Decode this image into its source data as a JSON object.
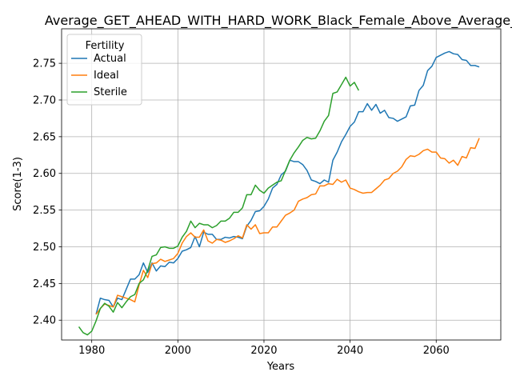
{
  "chart_data": {
    "type": "line",
    "title": "Average_GET_AHEAD_WITH_HARD_WORK_Black_Female_Above_Average_",
    "xlabel": "Years",
    "ylabel": "Score(1-3)",
    "xlim": [
      1973,
      2075
    ],
    "ylim": [
      2.373,
      2.797
    ],
    "x_ticks": [
      1980,
      2000,
      2020,
      2040,
      2060
    ],
    "y_ticks": [
      2.4,
      2.45,
      2.5,
      2.55,
      2.6,
      2.65,
      2.7,
      2.75
    ],
    "x_tick_labels": [
      "1980",
      "2000",
      "2020",
      "2040",
      "2060"
    ],
    "y_tick_labels": [
      "2.40",
      "2.45",
      "2.50",
      "2.55",
      "2.60",
      "2.65",
      "2.70",
      "2.75"
    ],
    "grid": true,
    "legend": {
      "title": "Fertility",
      "placement": "top-left"
    },
    "series": [
      {
        "name": "Actual",
        "color": "#1f77b4",
        "points": [
          [
            1981,
            2.408
          ],
          [
            1982,
            2.43
          ],
          [
            1983,
            2.428
          ],
          [
            1984,
            2.427
          ],
          [
            1985,
            2.418
          ],
          [
            1986,
            2.43
          ],
          [
            1987,
            2.428
          ],
          [
            1988,
            2.442
          ],
          [
            1989,
            2.456
          ],
          [
            1990,
            2.456
          ],
          [
            1991,
            2.462
          ],
          [
            1992,
            2.478
          ],
          [
            1993,
            2.465
          ],
          [
            1994,
            2.478
          ],
          [
            1995,
            2.467
          ],
          [
            1996,
            2.474
          ],
          [
            1997,
            2.473
          ],
          [
            1998,
            2.479
          ],
          [
            1999,
            2.478
          ],
          [
            2000,
            2.484
          ],
          [
            2001,
            2.494
          ],
          [
            2002,
            2.496
          ],
          [
            2003,
            2.499
          ],
          [
            2004,
            2.514
          ],
          [
            2005,
            2.5
          ],
          [
            2006,
            2.52
          ],
          [
            2007,
            2.517
          ],
          [
            2008,
            2.517
          ],
          [
            2009,
            2.51
          ],
          [
            2010,
            2.51
          ],
          [
            2011,
            2.513
          ],
          [
            2012,
            2.512
          ],
          [
            2013,
            2.514
          ],
          [
            2014,
            2.513
          ],
          [
            2015,
            2.511
          ],
          [
            2016,
            2.528
          ],
          [
            2017,
            2.536
          ],
          [
            2018,
            2.548
          ],
          [
            2019,
            2.549
          ],
          [
            2020,
            2.555
          ],
          [
            2021,
            2.565
          ],
          [
            2022,
            2.58
          ],
          [
            2023,
            2.585
          ],
          [
            2024,
            2.598
          ],
          [
            2025,
            2.603
          ],
          [
            2026,
            2.618
          ],
          [
            2027,
            2.616
          ],
          [
            2028,
            2.616
          ],
          [
            2029,
            2.612
          ],
          [
            2030,
            2.604
          ],
          [
            2031,
            2.591
          ],
          [
            2032,
            2.589
          ],
          [
            2033,
            2.586
          ],
          [
            2034,
            2.591
          ],
          [
            2035,
            2.588
          ],
          [
            2036,
            2.618
          ],
          [
            2037,
            2.629
          ],
          [
            2038,
            2.643
          ],
          [
            2039,
            2.653
          ],
          [
            2040,
            2.664
          ],
          [
            2041,
            2.67
          ],
          [
            2042,
            2.684
          ],
          [
            2043,
            2.684
          ],
          [
            2044,
            2.695
          ],
          [
            2045,
            2.686
          ],
          [
            2046,
            2.694
          ],
          [
            2047,
            2.682
          ],
          [
            2048,
            2.686
          ],
          [
            2049,
            2.676
          ],
          [
            2050,
            2.675
          ],
          [
            2051,
            2.671
          ],
          [
            2052,
            2.674
          ],
          [
            2053,
            2.677
          ],
          [
            2054,
            2.692
          ],
          [
            2055,
            2.693
          ],
          [
            2056,
            2.713
          ],
          [
            2057,
            2.72
          ],
          [
            2058,
            2.74
          ],
          [
            2059,
            2.746
          ],
          [
            2060,
            2.758
          ],
          [
            2061,
            2.761
          ],
          [
            2062,
            2.764
          ],
          [
            2063,
            2.766
          ],
          [
            2064,
            2.763
          ],
          [
            2065,
            2.762
          ],
          [
            2066,
            2.755
          ],
          [
            2067,
            2.754
          ],
          [
            2068,
            2.747
          ],
          [
            2069,
            2.747
          ],
          [
            2070,
            2.745
          ]
        ]
      },
      {
        "name": "Ideal",
        "color": "#ff7f0e",
        "points": [
          [
            1981,
            2.408
          ],
          [
            1982,
            2.416
          ],
          [
            1983,
            2.422
          ],
          [
            1984,
            2.42
          ],
          [
            1985,
            2.418
          ],
          [
            1986,
            2.434
          ],
          [
            1987,
            2.432
          ],
          [
            1988,
            2.43
          ],
          [
            1989,
            2.428
          ],
          [
            1990,
            2.425
          ],
          [
            1991,
            2.448
          ],
          [
            1992,
            2.468
          ],
          [
            1993,
            2.458
          ],
          [
            1994,
            2.477
          ],
          [
            1995,
            2.478
          ],
          [
            1996,
            2.483
          ],
          [
            1997,
            2.48
          ],
          [
            1998,
            2.482
          ],
          [
            1999,
            2.484
          ],
          [
            2000,
            2.491
          ],
          [
            2001,
            2.505
          ],
          [
            2002,
            2.514
          ],
          [
            2003,
            2.519
          ],
          [
            2004,
            2.513
          ],
          [
            2005,
            2.513
          ],
          [
            2006,
            2.523
          ],
          [
            2007,
            2.508
          ],
          [
            2008,
            2.505
          ],
          [
            2009,
            2.51
          ],
          [
            2010,
            2.509
          ],
          [
            2011,
            2.506
          ],
          [
            2012,
            2.508
          ],
          [
            2013,
            2.511
          ],
          [
            2014,
            2.515
          ],
          [
            2015,
            2.512
          ],
          [
            2016,
            2.53
          ],
          [
            2017,
            2.524
          ],
          [
            2018,
            2.53
          ],
          [
            2019,
            2.518
          ],
          [
            2020,
            2.519
          ],
          [
            2021,
            2.519
          ],
          [
            2022,
            2.527
          ],
          [
            2023,
            2.527
          ],
          [
            2024,
            2.535
          ],
          [
            2025,
            2.543
          ],
          [
            2026,
            2.546
          ],
          [
            2027,
            2.55
          ],
          [
            2028,
            2.562
          ],
          [
            2029,
            2.565
          ],
          [
            2030,
            2.567
          ],
          [
            2031,
            2.571
          ],
          [
            2032,
            2.572
          ],
          [
            2033,
            2.583
          ],
          [
            2034,
            2.583
          ],
          [
            2035,
            2.586
          ],
          [
            2036,
            2.585
          ],
          [
            2037,
            2.592
          ],
          [
            2038,
            2.588
          ],
          [
            2039,
            2.591
          ],
          [
            2040,
            2.58
          ],
          [
            2041,
            2.578
          ],
          [
            2042,
            2.575
          ],
          [
            2043,
            2.573
          ],
          [
            2044,
            2.574
          ],
          [
            2045,
            2.574
          ],
          [
            2046,
            2.579
          ],
          [
            2047,
            2.584
          ],
          [
            2048,
            2.591
          ],
          [
            2049,
            2.593
          ],
          [
            2050,
            2.6
          ],
          [
            2051,
            2.603
          ],
          [
            2052,
            2.609
          ],
          [
            2053,
            2.619
          ],
          [
            2054,
            2.624
          ],
          [
            2055,
            2.623
          ],
          [
            2056,
            2.626
          ],
          [
            2057,
            2.631
          ],
          [
            2058,
            2.633
          ],
          [
            2059,
            2.629
          ],
          [
            2060,
            2.629
          ],
          [
            2061,
            2.621
          ],
          [
            2062,
            2.62
          ],
          [
            2063,
            2.614
          ],
          [
            2064,
            2.618
          ],
          [
            2065,
            2.611
          ],
          [
            2066,
            2.623
          ],
          [
            2067,
            2.621
          ],
          [
            2068,
            2.635
          ],
          [
            2069,
            2.634
          ],
          [
            2070,
            2.648
          ]
        ]
      },
      {
        "name": "Sterile",
        "color": "#2ca02c",
        "points": [
          [
            1977,
            2.391
          ],
          [
            1978,
            2.383
          ],
          [
            1979,
            2.38
          ],
          [
            1980,
            2.385
          ],
          [
            1981,
            2.399
          ],
          [
            1982,
            2.416
          ],
          [
            1983,
            2.423
          ],
          [
            1984,
            2.419
          ],
          [
            1985,
            2.411
          ],
          [
            1986,
            2.424
          ],
          [
            1987,
            2.417
          ],
          [
            1988,
            2.425
          ],
          [
            1989,
            2.432
          ],
          [
            1990,
            2.435
          ],
          [
            1991,
            2.45
          ],
          [
            1992,
            2.455
          ],
          [
            1993,
            2.468
          ],
          [
            1994,
            2.487
          ],
          [
            1995,
            2.489
          ],
          [
            1996,
            2.499
          ],
          [
            1997,
            2.5
          ],
          [
            1998,
            2.498
          ],
          [
            1999,
            2.498
          ],
          [
            2000,
            2.501
          ],
          [
            2001,
            2.513
          ],
          [
            2002,
            2.521
          ],
          [
            2003,
            2.535
          ],
          [
            2004,
            2.526
          ],
          [
            2005,
            2.532
          ],
          [
            2006,
            2.53
          ],
          [
            2007,
            2.53
          ],
          [
            2008,
            2.526
          ],
          [
            2009,
            2.529
          ],
          [
            2010,
            2.535
          ],
          [
            2011,
            2.535
          ],
          [
            2012,
            2.539
          ],
          [
            2013,
            2.547
          ],
          [
            2014,
            2.547
          ],
          [
            2015,
            2.553
          ],
          [
            2016,
            2.571
          ],
          [
            2017,
            2.571
          ],
          [
            2018,
            2.584
          ],
          [
            2019,
            2.577
          ],
          [
            2020,
            2.573
          ],
          [
            2021,
            2.58
          ],
          [
            2022,
            2.584
          ],
          [
            2023,
            2.588
          ],
          [
            2024,
            2.59
          ],
          [
            2025,
            2.604
          ],
          [
            2026,
            2.618
          ],
          [
            2027,
            2.628
          ],
          [
            2028,
            2.636
          ],
          [
            2029,
            2.645
          ],
          [
            2030,
            2.649
          ],
          [
            2031,
            2.647
          ],
          [
            2032,
            2.648
          ],
          [
            2033,
            2.658
          ],
          [
            2034,
            2.671
          ],
          [
            2035,
            2.679
          ],
          [
            2036,
            2.709
          ],
          [
            2037,
            2.711
          ],
          [
            2038,
            2.721
          ],
          [
            2039,
            2.731
          ],
          [
            2040,
            2.719
          ],
          [
            2041,
            2.724
          ],
          [
            2042,
            2.713
          ]
        ]
      }
    ]
  }
}
